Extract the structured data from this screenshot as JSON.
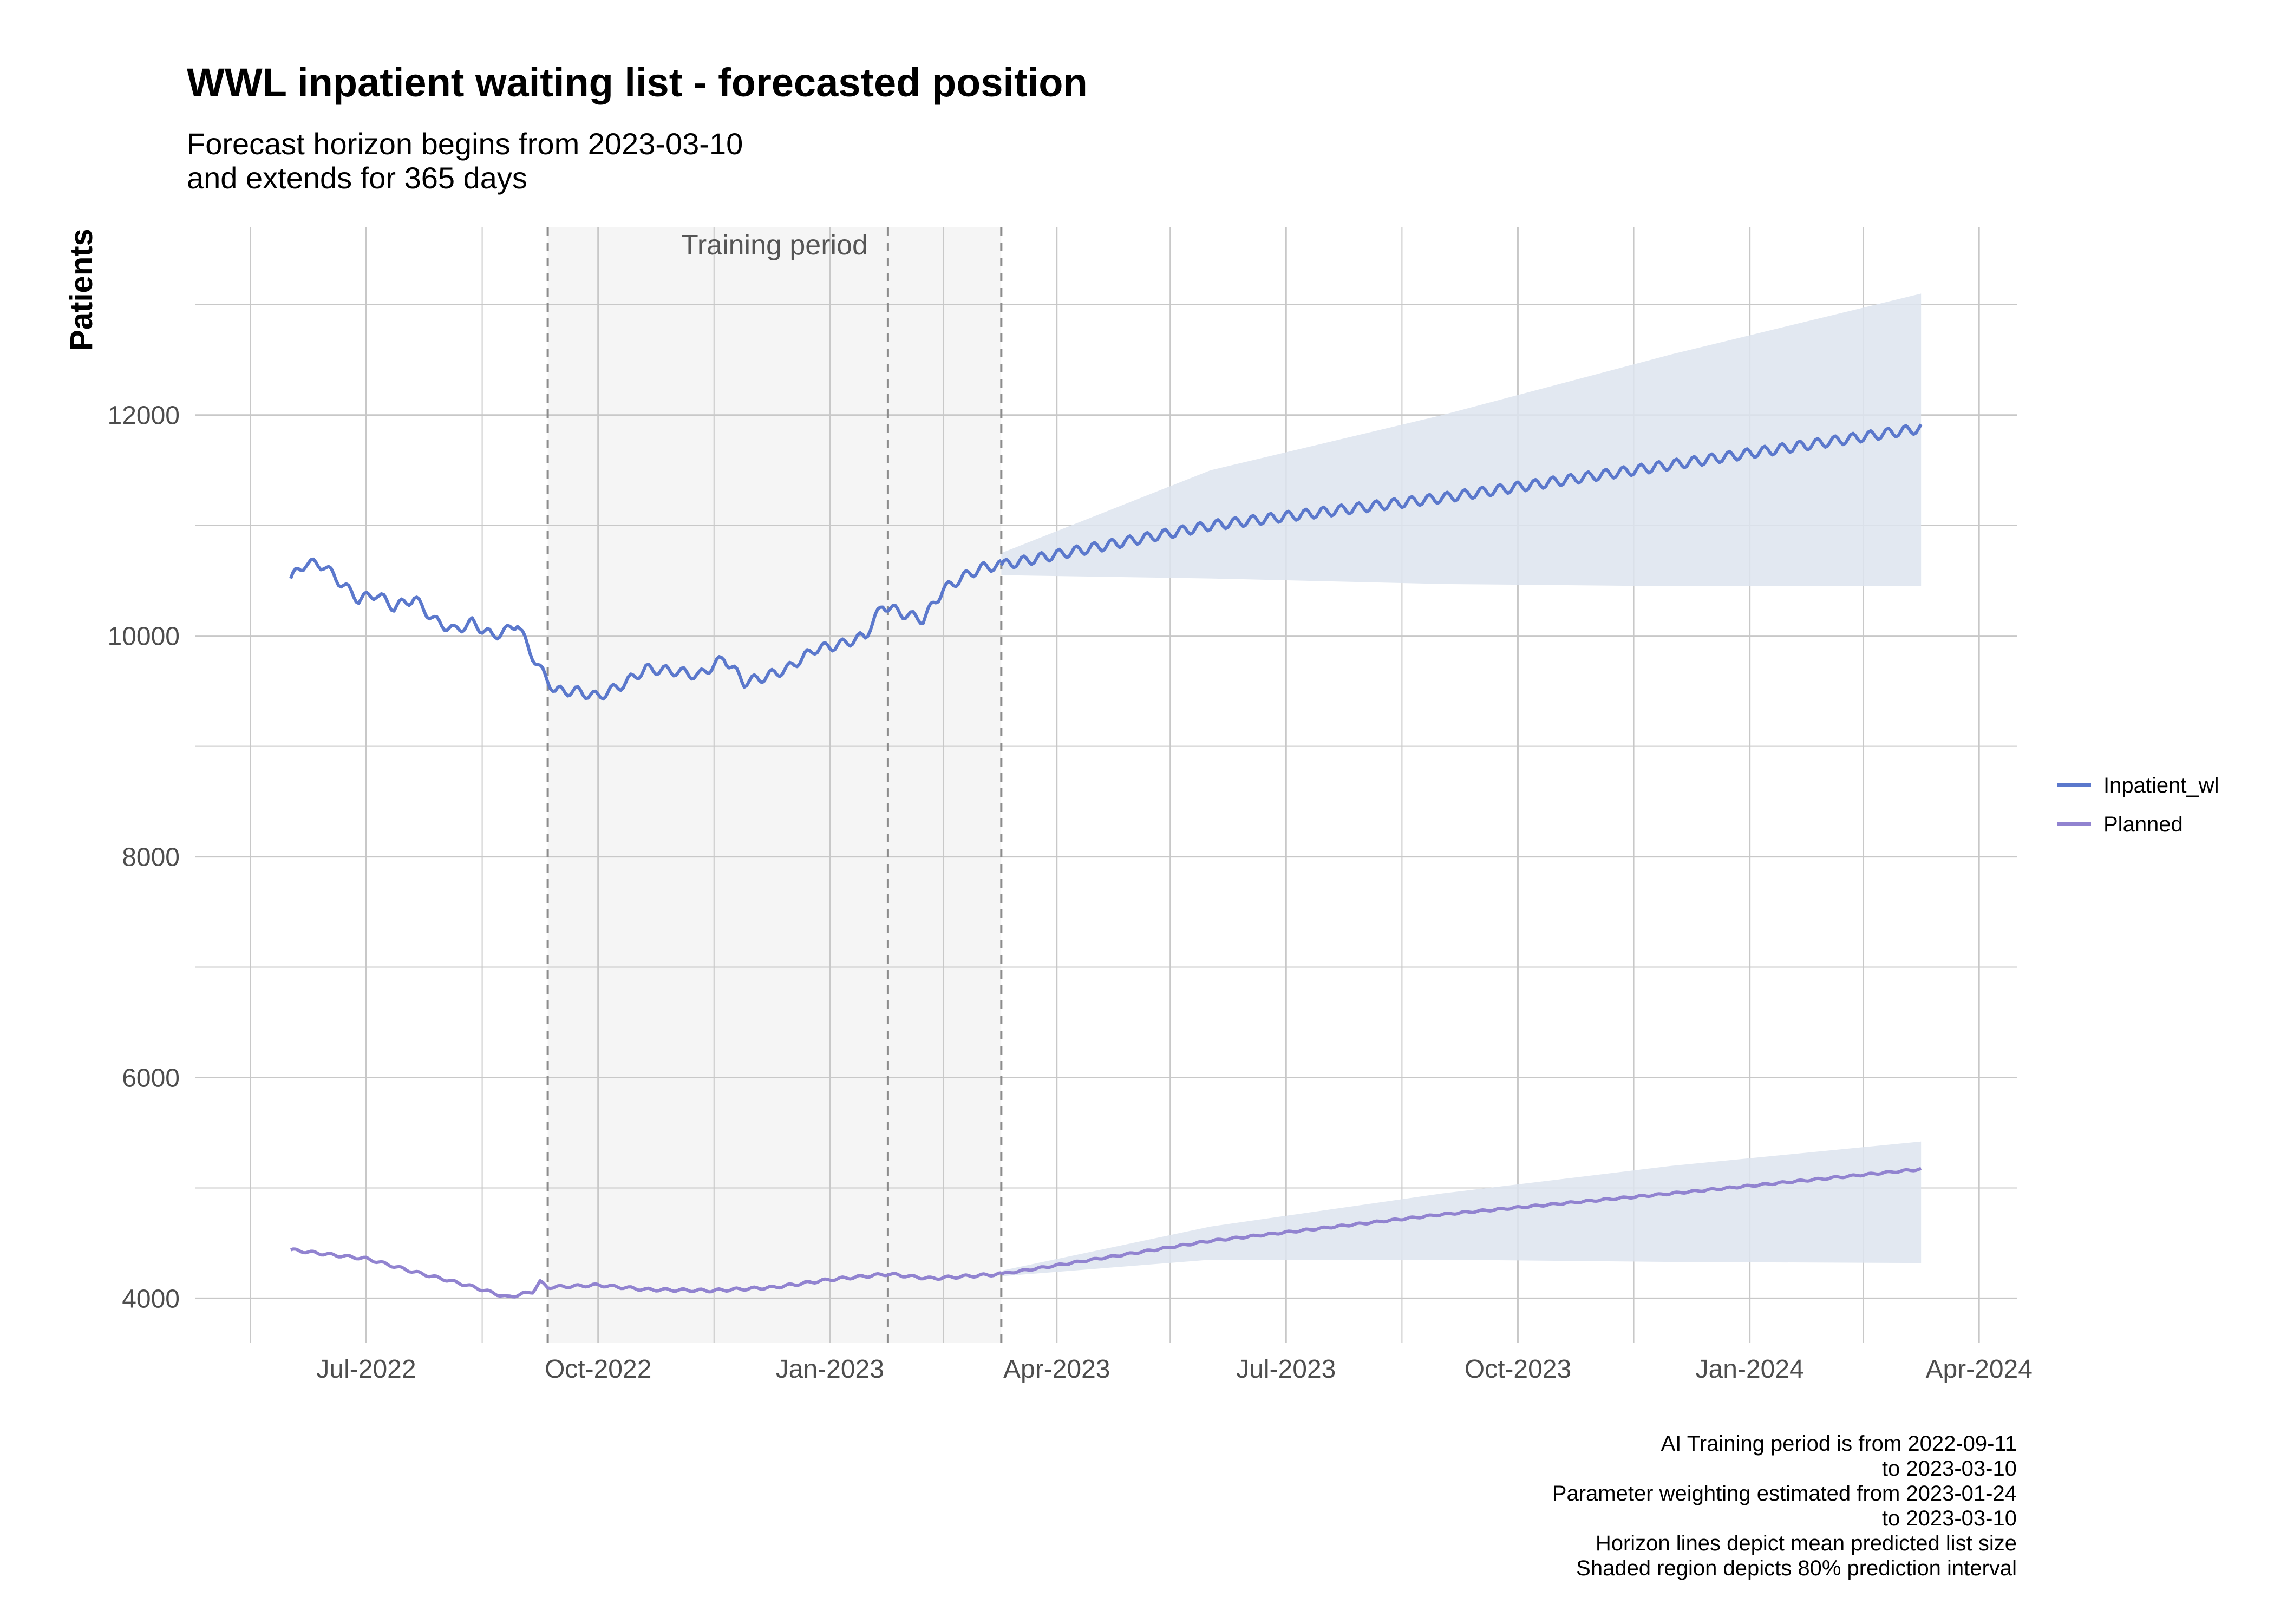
{
  "chart_data": {
    "type": "line",
    "title": "WWL inpatient waiting list - forecasted position",
    "subtitle_lines": [
      "Forecast horizon begins from 2023-03-10",
      "and extends for 365 days"
    ],
    "ylabel": "Patients",
    "xlabel": "",
    "ylim": [
      3600,
      13700
    ],
    "xlim": [
      "2022-04-24",
      "2024-04-16"
    ],
    "y_ticks": [
      4000,
      6000,
      8000,
      10000,
      12000
    ],
    "y_tick_labels": [
      "4000",
      "6000",
      "8000",
      "10000",
      "12000"
    ],
    "x_ticks": [
      "2022-07-01",
      "2022-10-01",
      "2023-01-01",
      "2023-04-01",
      "2023-07-01",
      "2023-10-01",
      "2024-01-01",
      "2024-04-01"
    ],
    "x_tick_labels": [
      "Jul-2022",
      "Oct-2022",
      "Jan-2023",
      "Apr-2023",
      "Jul-2023",
      "Oct-2023",
      "Jan-2024",
      "Apr-2024"
    ],
    "grid": true,
    "legend_position": "right",
    "training_period": {
      "start": "2022-09-11",
      "end": "2023-03-10",
      "label": "Training period"
    },
    "vertical_markers": [
      "2022-09-11",
      "2023-01-24",
      "2023-03-10"
    ],
    "series": [
      {
        "name": "Inpatient_wl",
        "color": "#5b78cc",
        "actual": [
          {
            "x": "2022-06-01",
            "y": 10520
          },
          {
            "x": "2022-06-07",
            "y": 10660
          },
          {
            "x": "2022-06-14",
            "y": 10640
          },
          {
            "x": "2022-06-20",
            "y": 10500
          },
          {
            "x": "2022-06-28",
            "y": 10330
          },
          {
            "x": "2022-07-05",
            "y": 10380
          },
          {
            "x": "2022-07-12",
            "y": 10260
          },
          {
            "x": "2022-07-20",
            "y": 10340
          },
          {
            "x": "2022-07-28",
            "y": 10140
          },
          {
            "x": "2022-08-05",
            "y": 10050
          },
          {
            "x": "2022-08-12",
            "y": 10120
          },
          {
            "x": "2022-08-20",
            "y": 10000
          },
          {
            "x": "2022-08-26",
            "y": 10050
          },
          {
            "x": "2022-08-30",
            "y": 10120
          },
          {
            "x": "2022-09-03",
            "y": 9900
          },
          {
            "x": "2022-09-08",
            "y": 9700
          },
          {
            "x": "2022-09-14",
            "y": 9500
          },
          {
            "x": "2022-09-22",
            "y": 9500
          },
          {
            "x": "2022-10-01",
            "y": 9450
          },
          {
            "x": "2022-10-10",
            "y": 9550
          },
          {
            "x": "2022-10-20",
            "y": 9700
          },
          {
            "x": "2022-11-01",
            "y": 9680
          },
          {
            "x": "2022-11-10",
            "y": 9640
          },
          {
            "x": "2022-11-20",
            "y": 9800
          },
          {
            "x": "2022-11-28",
            "y": 9580
          },
          {
            "x": "2022-12-05",
            "y": 9620
          },
          {
            "x": "2022-12-15",
            "y": 9700
          },
          {
            "x": "2022-12-26",
            "y": 9880
          },
          {
            "x": "2023-01-05",
            "y": 9920
          },
          {
            "x": "2023-01-15",
            "y": 10000
          },
          {
            "x": "2023-01-22",
            "y": 10280
          },
          {
            "x": "2023-01-30",
            "y": 10200
          },
          {
            "x": "2023-02-07",
            "y": 10150
          },
          {
            "x": "2023-02-15",
            "y": 10420
          },
          {
            "x": "2023-02-25",
            "y": 10560
          },
          {
            "x": "2023-03-03",
            "y": 10620
          },
          {
            "x": "2023-03-10",
            "y": 10640
          }
        ],
        "forecast": [
          {
            "x": "2023-03-10",
            "y": 10640
          },
          {
            "x": "2023-06-01",
            "y": 11000
          },
          {
            "x": "2023-09-01",
            "y": 11250
          },
          {
            "x": "2023-12-01",
            "y": 11550
          },
          {
            "x": "2024-03-09",
            "y": 11880
          }
        ],
        "interval_80": [
          {
            "x": "2023-03-10",
            "lo": 10550,
            "hi": 10750
          },
          {
            "x": "2023-06-01",
            "lo": 10520,
            "hi": 11500
          },
          {
            "x": "2023-09-01",
            "lo": 10470,
            "hi": 12000
          },
          {
            "x": "2023-12-01",
            "lo": 10450,
            "hi": 12550
          },
          {
            "x": "2024-03-09",
            "lo": 10450,
            "hi": 13100
          }
        ]
      },
      {
        "name": "Planned",
        "color": "#9183d0",
        "actual": [
          {
            "x": "2022-06-01",
            "y": 4440
          },
          {
            "x": "2022-06-15",
            "y": 4400
          },
          {
            "x": "2022-07-01",
            "y": 4360
          },
          {
            "x": "2022-07-20",
            "y": 4240
          },
          {
            "x": "2022-08-10",
            "y": 4120
          },
          {
            "x": "2022-08-26",
            "y": 4010
          },
          {
            "x": "2022-09-05",
            "y": 4060
          },
          {
            "x": "2022-09-08",
            "y": 4150
          },
          {
            "x": "2022-09-11",
            "y": 4100
          },
          {
            "x": "2022-10-01",
            "y": 4120
          },
          {
            "x": "2022-10-20",
            "y": 4080
          },
          {
            "x": "2022-11-15",
            "y": 4070
          },
          {
            "x": "2022-12-10",
            "y": 4100
          },
          {
            "x": "2023-01-01",
            "y": 4170
          },
          {
            "x": "2023-01-24",
            "y": 4220
          },
          {
            "x": "2023-02-10",
            "y": 4180
          },
          {
            "x": "2023-03-10",
            "y": 4220
          }
        ],
        "forecast": [
          {
            "x": "2023-03-10",
            "y": 4220
          },
          {
            "x": "2023-06-01",
            "y": 4520
          },
          {
            "x": "2023-09-01",
            "y": 4760
          },
          {
            "x": "2023-12-01",
            "y": 4950
          },
          {
            "x": "2024-03-09",
            "y": 5170
          }
        ],
        "interval_80": [
          {
            "x": "2023-03-10",
            "lo": 4200,
            "hi": 4250
          },
          {
            "x": "2023-06-01",
            "lo": 4350,
            "hi": 4650
          },
          {
            "x": "2023-09-01",
            "lo": 4350,
            "hi": 4950
          },
          {
            "x": "2023-12-01",
            "lo": 4330,
            "hi": 5200
          },
          {
            "x": "2024-03-09",
            "lo": 4320,
            "hi": 5420
          }
        ]
      }
    ],
    "caption_lines": [
      "AI Training period is from 2022-09-11",
      "to 2023-03-10",
      "Parameter weighting estimated from 2023-01-24",
      "to 2023-03-10",
      "Horizon lines depict mean predicted list size",
      "Shaded region depicts 80% prediction interval"
    ],
    "colors": {
      "interval_fill": "#dde4ef",
      "training_fill": "#f5f5f5",
      "grid": "#c8c8c8",
      "marker": "#8c8c8c"
    }
  }
}
